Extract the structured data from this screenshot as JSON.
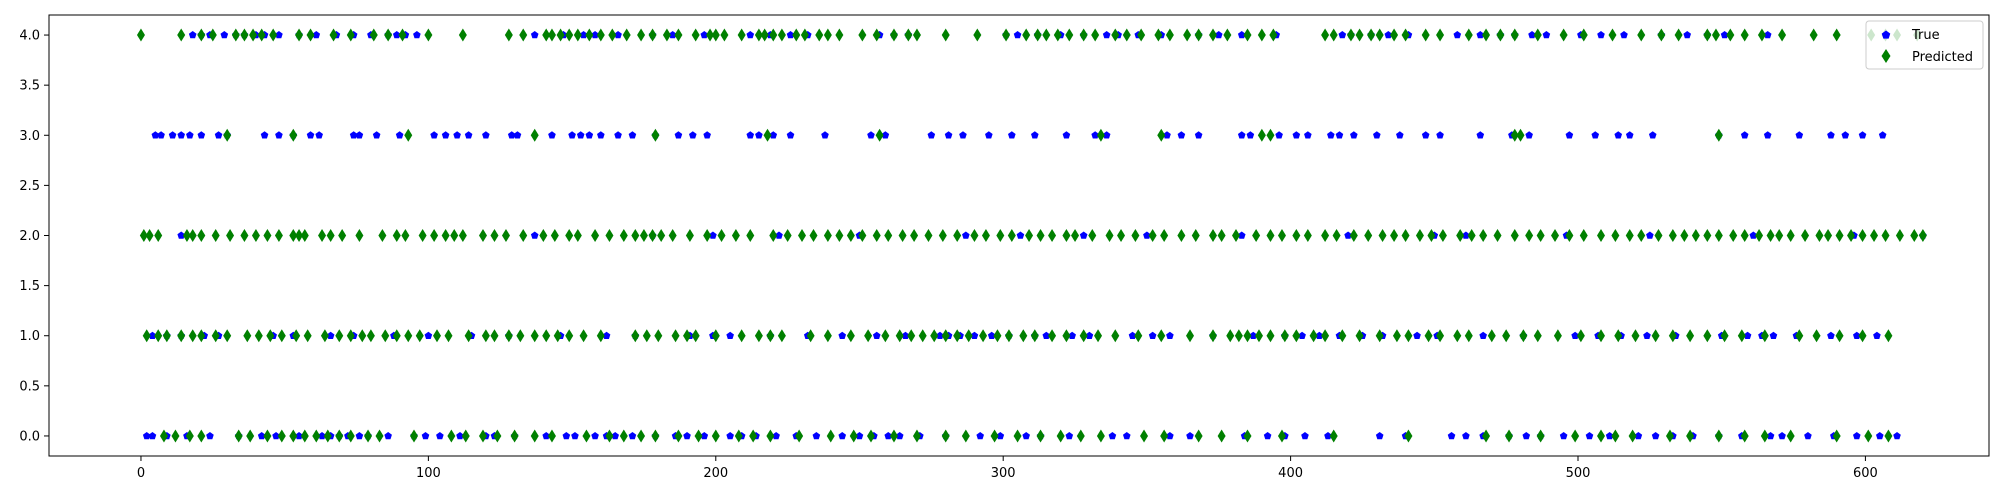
{
  "chart_data": {
    "type": "scatter",
    "title": "",
    "xlabel": "",
    "ylabel": "",
    "xlim": [
      -32,
      643
    ],
    "ylim": [
      -0.2,
      4.2
    ],
    "x_ticks": [
      0,
      100,
      200,
      300,
      400,
      500,
      600
    ],
    "y_ticks": [
      0.0,
      0.5,
      1.0,
      1.5,
      2.0,
      2.5,
      3.0,
      3.5,
      4.0
    ],
    "x_tick_labels": [
      "0",
      "100",
      "200",
      "300",
      "400",
      "500",
      "600"
    ],
    "y_tick_labels": [
      "0.0",
      "0.5",
      "1.0",
      "1.5",
      "2.0",
      "2.5",
      "3.0",
      "3.5",
      "4.0"
    ],
    "grid": false,
    "legend": {
      "position": "top-right"
    },
    "series": [
      {
        "name": "True",
        "marker": "pentagon",
        "color": "#0000ff",
        "points": {
          "4": [
            18,
            21,
            24,
            29,
            33,
            36,
            40,
            43,
            48,
            55,
            61,
            68,
            74,
            80,
            86,
            89,
            92,
            96,
            137,
            147,
            154,
            158,
            166,
            178,
            185,
            196,
            212,
            219,
            226,
            232,
            257,
            262,
            267,
            301,
            305,
            312,
            320,
            328,
            336,
            340,
            347,
            355,
            368,
            375,
            383,
            395,
            418,
            421,
            428,
            434,
            441,
            458,
            466,
            473,
            478,
            484,
            489,
            501,
            508,
            516,
            529,
            538,
            545,
            551,
            566
          ],
          "3": [
            5,
            7,
            11,
            14,
            17,
            21,
            27,
            30,
            43,
            48,
            53,
            59,
            62,
            74,
            76,
            82,
            90,
            102,
            106,
            110,
            114,
            120,
            129,
            131,
            143,
            150,
            153,
            156,
            160,
            166,
            171,
            179,
            187,
            192,
            197,
            212,
            215,
            220,
            226,
            238,
            254,
            259,
            275,
            281,
            286,
            295,
            303,
            311,
            322,
            332,
            336,
            357,
            362,
            368,
            383,
            386,
            396,
            402,
            406,
            414,
            417,
            422,
            430,
            438,
            447,
            452,
            466,
            477,
            483,
            497,
            506,
            514,
            518,
            526,
            549,
            558,
            566,
            577,
            588,
            593,
            599,
            606
          ],
          "2": [
            14,
            137,
            178,
            199,
            222,
            250,
            287,
            306,
            328,
            350,
            383,
            420,
            450,
            461,
            496,
            525,
            561,
            596,
            620
          ],
          "1": [
            4,
            9,
            14,
            22,
            27,
            46,
            53,
            66,
            74,
            88,
            100,
            115,
            128,
            146,
            162,
            172,
            191,
            199,
            205,
            219,
            232,
            244,
            256,
            266,
            278,
            281,
            285,
            290,
            296,
            302,
            311,
            315,
            324,
            330,
            345,
            352,
            358,
            373,
            387,
            398,
            404,
            410,
            417,
            425,
            432,
            444,
            451,
            467,
            481,
            499,
            507,
            515,
            524,
            534,
            550,
            559,
            564,
            568,
            576,
            588,
            597,
            604
          ],
          "0": [
            2,
            4,
            9,
            16,
            24,
            34,
            42,
            47,
            55,
            63,
            66,
            69,
            72,
            76,
            79,
            86,
            95,
            99,
            104,
            111,
            120,
            123,
            130,
            141,
            148,
            151,
            158,
            162,
            165,
            171,
            179,
            186,
            190,
            196,
            205,
            209,
            214,
            221,
            228,
            235,
            244,
            250,
            255,
            260,
            264,
            271,
            280,
            292,
            299,
            308,
            313,
            323,
            338,
            343,
            358,
            365,
            384,
            392,
            398,
            405,
            413,
            431,
            440,
            456,
            461,
            467,
            476,
            482,
            487,
            495,
            504,
            511,
            521,
            527,
            533,
            540,
            549,
            557,
            567,
            571,
            580,
            589,
            597,
            605,
            611
          ]
        }
      },
      {
        "name": "Predicted",
        "marker": "diamond",
        "color": "#008000",
        "points": {
          "4": [
            0,
            14,
            21,
            25,
            33,
            36,
            39,
            42,
            46,
            55,
            59,
            67,
            73,
            81,
            86,
            91,
            100,
            112,
            128,
            133,
            141,
            143,
            146,
            149,
            152,
            156,
            160,
            164,
            169,
            174,
            178,
            183,
            187,
            193,
            198,
            200,
            203,
            209,
            215,
            217,
            220,
            223,
            228,
            231,
            236,
            239,
            243,
            251,
            256,
            262,
            267,
            270,
            280,
            291,
            301,
            308,
            312,
            315,
            319,
            323,
            328,
            332,
            339,
            343,
            348,
            354,
            358,
            364,
            368,
            373,
            378,
            385,
            390,
            394,
            412,
            415,
            421,
            424,
            428,
            431,
            436,
            440,
            447,
            452,
            462,
            468,
            473,
            478,
            486,
            495,
            502,
            512,
            522,
            529,
            535,
            545,
            548,
            553,
            558,
            564,
            571,
            582,
            590,
            602,
            607,
            611,
            618
          ],
          "3": [
            30,
            53,
            93,
            137,
            179,
            218,
            257,
            334,
            355,
            390,
            393,
            478,
            480,
            549
          ],
          "2": [
            1,
            3,
            6,
            16,
            18,
            21,
            26,
            31,
            36,
            40,
            44,
            48,
            53,
            55,
            57,
            63,
            66,
            70,
            76,
            84,
            89,
            92,
            98,
            102,
            106,
            109,
            112,
            119,
            123,
            127,
            133,
            140,
            144,
            149,
            152,
            158,
            163,
            168,
            172,
            175,
            178,
            181,
            185,
            191,
            197,
            202,
            207,
            212,
            220,
            225,
            230,
            234,
            239,
            243,
            247,
            251,
            256,
            260,
            265,
            269,
            274,
            279,
            284,
            290,
            294,
            299,
            303,
            309,
            313,
            317,
            322,
            325,
            331,
            337,
            341,
            346,
            352,
            356,
            362,
            367,
            373,
            376,
            381,
            388,
            393,
            397,
            402,
            406,
            412,
            416,
            422,
            427,
            432,
            436,
            440,
            445,
            449,
            453,
            459,
            463,
            467,
            472,
            478,
            483,
            487,
            492,
            497,
            502,
            508,
            513,
            518,
            522,
            528,
            533,
            537,
            541,
            545,
            549,
            554,
            558,
            563,
            567,
            570,
            574,
            579,
            584,
            587,
            591,
            595,
            599,
            603,
            607,
            612,
            617,
            620
          ],
          "1": [
            2,
            6,
            9,
            14,
            18,
            21,
            26,
            30,
            37,
            41,
            45,
            49,
            54,
            58,
            64,
            69,
            73,
            77,
            80,
            85,
            89,
            93,
            97,
            103,
            107,
            114,
            120,
            123,
            128,
            132,
            137,
            141,
            145,
            149,
            154,
            160,
            172,
            176,
            180,
            186,
            190,
            193,
            200,
            209,
            215,
            219,
            223,
            233,
            239,
            247,
            253,
            259,
            264,
            268,
            272,
            276,
            280,
            284,
            288,
            293,
            298,
            302,
            307,
            311,
            317,
            322,
            328,
            333,
            339,
            347,
            355,
            365,
            373,
            379,
            382,
            385,
            389,
            393,
            398,
            402,
            408,
            412,
            418,
            424,
            431,
            437,
            441,
            448,
            452,
            458,
            462,
            470,
            475,
            481,
            486,
            493,
            501,
            508,
            514,
            520,
            527,
            533,
            539,
            545,
            551,
            557,
            565,
            577,
            583,
            591,
            599,
            608
          ],
          "0": [
            8,
            12,
            17,
            21,
            34,
            38,
            44,
            49,
            53,
            57,
            61,
            65,
            69,
            73,
            79,
            83,
            95,
            108,
            113,
            119,
            124,
            130,
            137,
            143,
            155,
            163,
            168,
            174,
            179,
            187,
            194,
            200,
            208,
            213,
            219,
            229,
            240,
            248,
            254,
            262,
            270,
            280,
            287,
            297,
            305,
            313,
            320,
            327,
            334,
            349,
            356,
            368,
            376,
            385,
            397,
            415,
            441,
            468,
            476,
            487,
            499,
            508,
            513,
            519,
            532,
            539,
            549,
            558,
            565,
            574,
            590,
            601,
            608
          ]
        }
      }
    ]
  }
}
